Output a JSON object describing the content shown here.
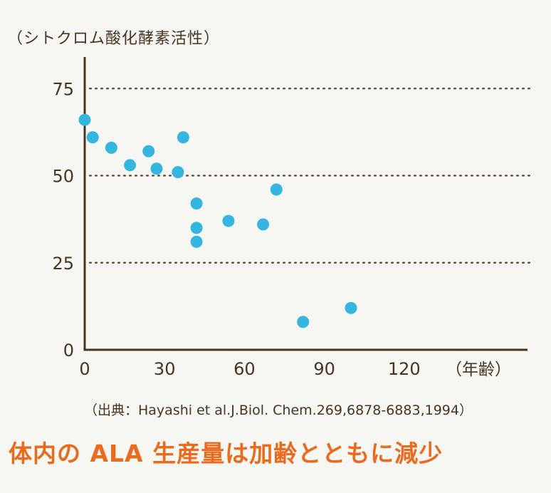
{
  "chart_data": {
    "type": "scatter",
    "ylabel": "（シトクロム酸化酵素活性）",
    "xlabel": "（年齢）",
    "xlim": [
      0,
      160
    ],
    "ylim": [
      0,
      80
    ],
    "x_ticks": [
      0,
      30,
      60,
      90,
      120
    ],
    "y_ticks": [
      0,
      25,
      50,
      75
    ],
    "grid": {
      "y_dotted_at": [
        25,
        50,
        75
      ]
    },
    "colors": {
      "point": "#35b6e0",
      "axis": "#4a3420"
    },
    "series": [
      {
        "points": [
          {
            "x": 0,
            "y": 66
          },
          {
            "x": 3,
            "y": 61
          },
          {
            "x": 10,
            "y": 58
          },
          {
            "x": 17,
            "y": 53
          },
          {
            "x": 24,
            "y": 57
          },
          {
            "x": 27,
            "y": 52
          },
          {
            "x": 35,
            "y": 51
          },
          {
            "x": 37,
            "y": 61
          },
          {
            "x": 42,
            "y": 42
          },
          {
            "x": 42,
            "y": 35
          },
          {
            "x": 42,
            "y": 31
          },
          {
            "x": 54,
            "y": 37
          },
          {
            "x": 67,
            "y": 36
          },
          {
            "x": 72,
            "y": 46
          },
          {
            "x": 82,
            "y": 8
          },
          {
            "x": 100,
            "y": 12
          }
        ]
      }
    ]
  },
  "source": "（出典：Hayashi et al.J.Biol. Chem.269,6878-6883,1994）",
  "headline": "体内の ALA 生産量は加齢とともに減少"
}
